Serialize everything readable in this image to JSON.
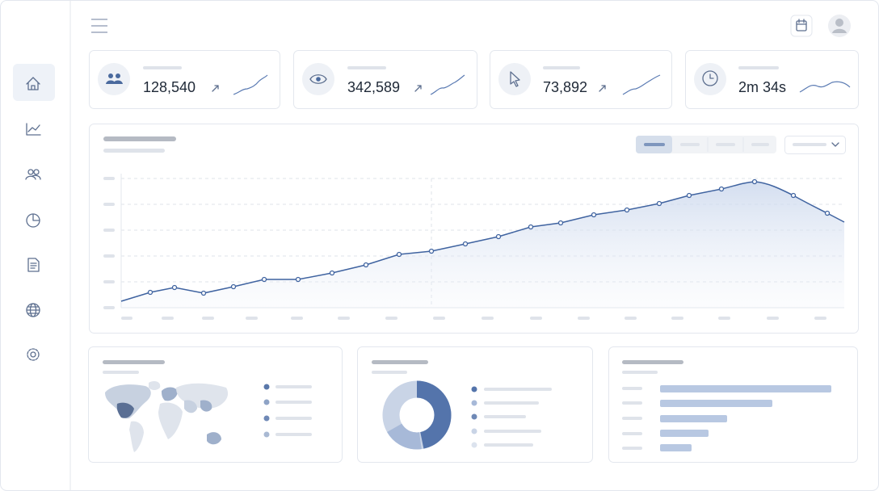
{
  "stats": [
    {
      "value": "128,540"
    },
    {
      "value": "342,589"
    },
    {
      "value": "73,892"
    },
    {
      "value": "2m 34s"
    }
  ]
}
